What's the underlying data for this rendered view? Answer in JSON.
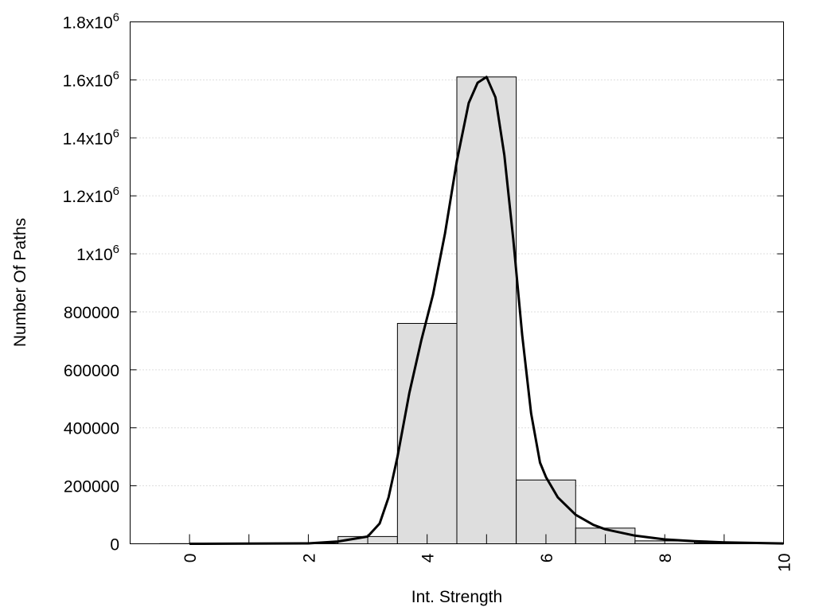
{
  "chart_data": {
    "type": "bar",
    "title": "",
    "xlabel": "Int. Strength",
    "ylabel": "Number Of Paths",
    "xlim": [
      -1,
      10
    ],
    "ylim": [
      0,
      1800000
    ],
    "grid": "horizontal dotted",
    "xticks": [
      {
        "value": 0,
        "label": "0"
      },
      {
        "value": 2,
        "label": "2"
      },
      {
        "value": 4,
        "label": "4"
      },
      {
        "value": 6,
        "label": "6"
      },
      {
        "value": 8,
        "label": "8"
      },
      {
        "value": 10,
        "label": "10"
      }
    ],
    "yticks": [
      {
        "value": 0,
        "label": "0",
        "exp": ""
      },
      {
        "value": 200000,
        "label": "200000",
        "exp": ""
      },
      {
        "value": 400000,
        "label": "400000",
        "exp": ""
      },
      {
        "value": 600000,
        "label": "600000",
        "exp": ""
      },
      {
        "value": 800000,
        "label": "800000",
        "exp": ""
      },
      {
        "value": 1000000,
        "label": "1x10",
        "exp": "6"
      },
      {
        "value": 1200000,
        "label": "1.2x10",
        "exp": "6"
      },
      {
        "value": 1400000,
        "label": "1.4x10",
        "exp": "6"
      },
      {
        "value": 1600000,
        "label": "1.6x10",
        "exp": "6"
      },
      {
        "value": 1800000,
        "label": "1.8x10",
        "exp": "6"
      }
    ],
    "bars": {
      "x": [
        0,
        1,
        2,
        3,
        4,
        5,
        6,
        7,
        8,
        9
      ],
      "values": [
        500,
        500,
        1500,
        25000,
        760000,
        1610000,
        220000,
        54000,
        10000,
        3000
      ],
      "width": 1,
      "fill": "#dedede",
      "stroke": "#000000"
    },
    "curve": {
      "x": [
        0,
        1,
        2,
        2.5,
        3,
        3.2,
        3.35,
        3.5,
        3.7,
        3.9,
        4.1,
        4.3,
        4.5,
        4.7,
        4.85,
        5,
        5.15,
        5.3,
        5.45,
        5.6,
        5.75,
        5.9,
        6,
        6.2,
        6.5,
        6.8,
        7,
        7.5,
        8,
        8.5,
        9,
        10
      ],
      "y": [
        0,
        500,
        1500,
        8000,
        25000,
        70000,
        160000,
        300000,
        520000,
        700000,
        860000,
        1070000,
        1320000,
        1520000,
        1590000,
        1610000,
        1540000,
        1340000,
        1050000,
        720000,
        450000,
        280000,
        230000,
        160000,
        100000,
        65000,
        50000,
        28000,
        15000,
        9000,
        5000,
        1000
      ],
      "color": "#000000"
    }
  }
}
